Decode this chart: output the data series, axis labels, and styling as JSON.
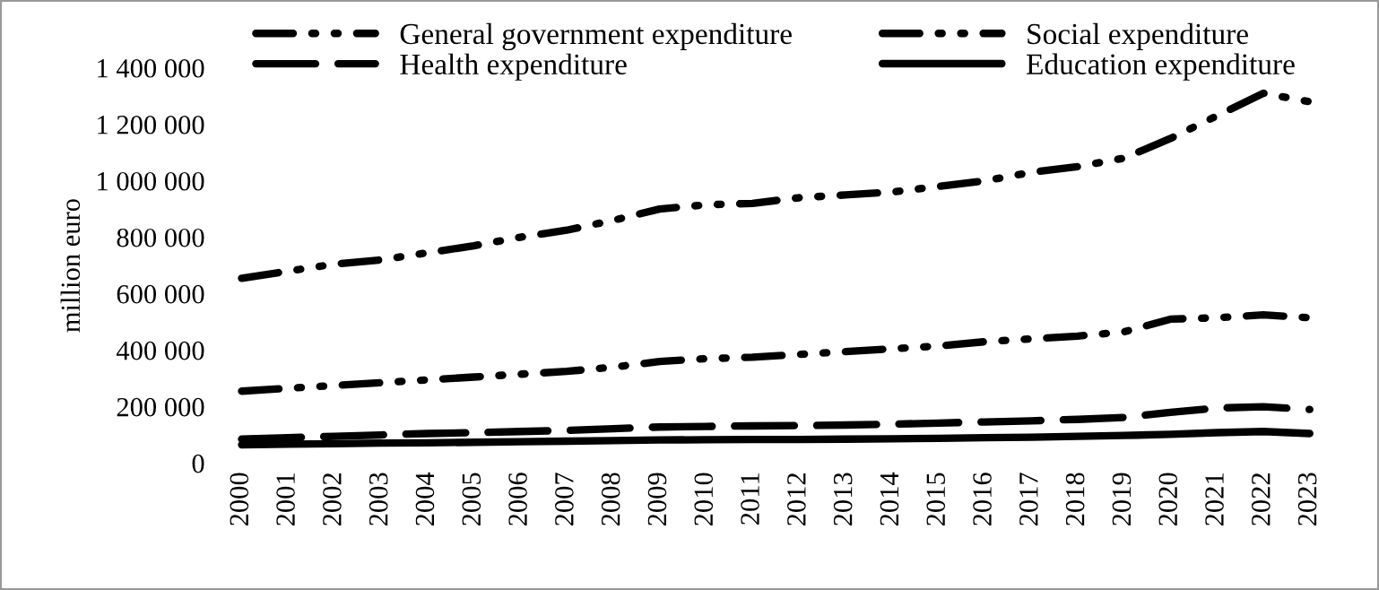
{
  "chart_data": {
    "type": "line",
    "ylabel": "million euro",
    "categories": [
      "2000",
      "2001",
      "2002",
      "2003",
      "2004",
      "2005",
      "2006",
      "2007",
      "2008",
      "2009",
      "2010",
      "2011",
      "2012",
      "2013",
      "2014",
      "2015",
      "2016",
      "2017",
      "2018",
      "2019",
      "2020",
      "2021",
      "2022",
      "2023"
    ],
    "series": [
      {
        "name": "General government expenditure",
        "color": "#000000",
        "line_style": "dashdotdot",
        "values": [
          655000,
          680000,
          705000,
          720000,
          745000,
          770000,
          800000,
          825000,
          860000,
          900000,
          915000,
          920000,
          940000,
          950000,
          960000,
          980000,
          1000000,
          1030000,
          1050000,
          1080000,
          1150000,
          1230000,
          1310000,
          1280000
        ]
      },
      {
        "name": "Social expenditure",
        "color": "#000000",
        "line_style": "dashdotdot",
        "values": [
          255000,
          265000,
          275000,
          285000,
          295000,
          305000,
          315000,
          325000,
          340000,
          360000,
          370000,
          375000,
          385000,
          395000,
          405000,
          415000,
          430000,
          440000,
          450000,
          465000,
          510000,
          515000,
          525000,
          515000
        ]
      },
      {
        "name": "Health expenditure",
        "color": "#000000",
        "line_style": "dashed",
        "values": [
          85000,
          90000,
          95000,
          100000,
          105000,
          108000,
          112000,
          116000,
          122000,
          128000,
          130000,
          132000,
          133000,
          135000,
          138000,
          142000,
          146000,
          150000,
          155000,
          162000,
          180000,
          195000,
          200000,
          190000
        ]
      },
      {
        "name": "Education expenditure",
        "color": "#000000",
        "line_style": "solid",
        "values": [
          65000,
          67000,
          69000,
          71000,
          72000,
          74000,
          76000,
          78000,
          80000,
          82000,
          83000,
          84000,
          84000,
          85000,
          86000,
          88000,
          90000,
          92000,
          95000,
          98000,
          102000,
          108000,
          112000,
          105000
        ]
      }
    ],
    "ylim": [
      0,
      1400000
    ],
    "yticks": [
      {
        "value": 0,
        "label": "0"
      },
      {
        "value": 200000,
        "label": "200 000"
      },
      {
        "value": 400000,
        "label": "400 000"
      },
      {
        "value": 600000,
        "label": "600 000"
      },
      {
        "value": 800000,
        "label": "800 000"
      },
      {
        "value": 1000000,
        "label": "1 000 000"
      },
      {
        "value": 1200000,
        "label": "1 200 000"
      },
      {
        "value": 1400000,
        "label": "1 400 000"
      }
    ],
    "grid": false,
    "legend": "top",
    "marker": "none"
  }
}
